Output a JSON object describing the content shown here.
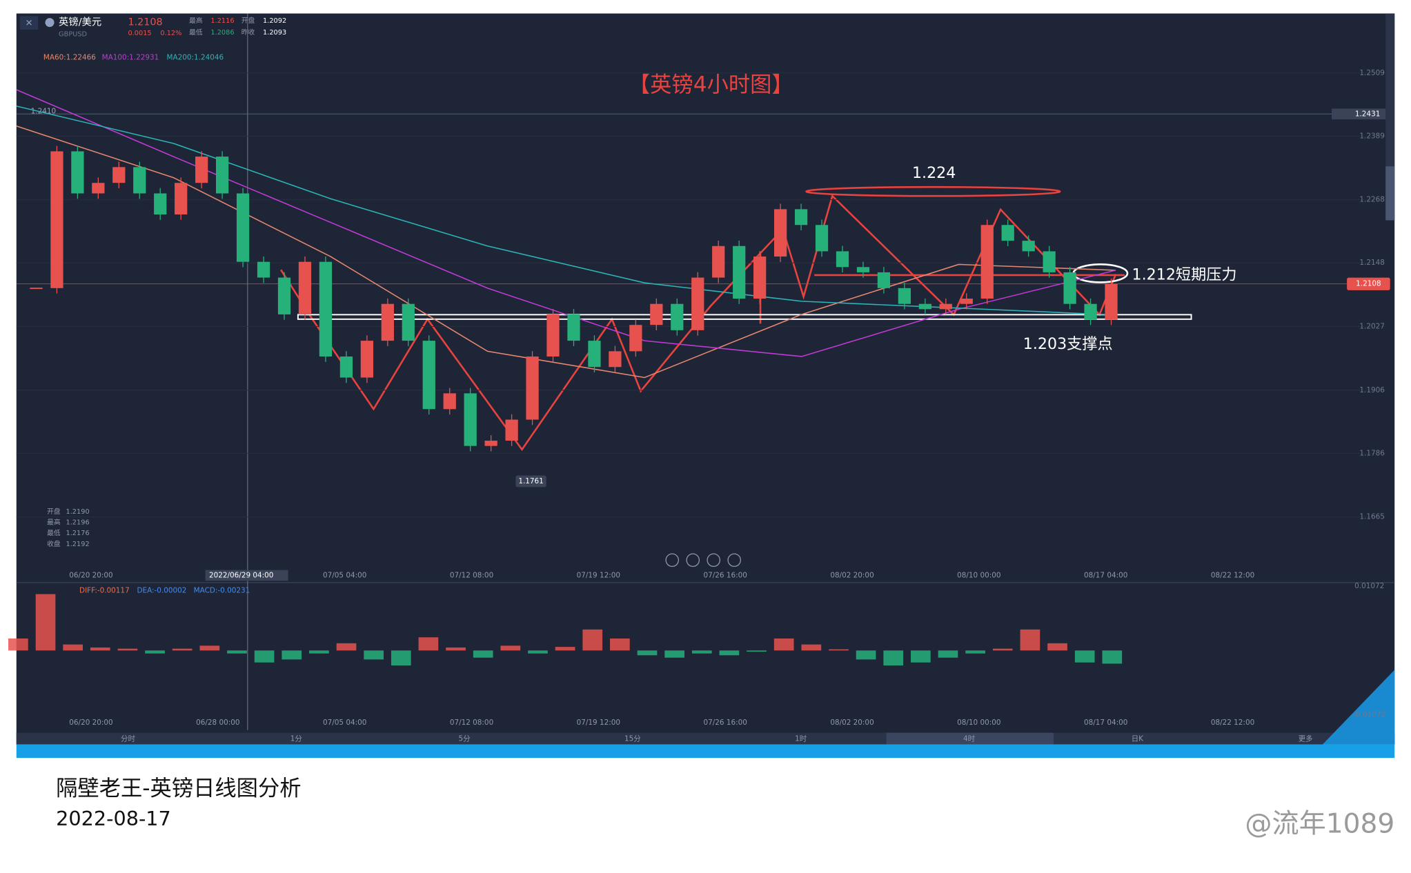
{
  "header": {
    "pair": "英镑/美元",
    "code": "GBPUSD",
    "price": "1.2108",
    "change": "0.0015",
    "change_pct": "0.12%",
    "stats": [
      {
        "label": "最高",
        "value": "1.2116"
      },
      {
        "label": "开盘",
        "value": "1.2092"
      },
      {
        "label": "最低",
        "value": "1.2086"
      },
      {
        "label": "昨收",
        "value": "1.2093"
      }
    ]
  },
  "chart_data": {
    "type": "candlestick",
    "title": "【英镑4小时图】",
    "values": [
      1.21,
      1.236,
      1.228,
      1.23,
      1.233,
      1.228,
      1.224,
      1.23,
      1.235,
      1.228,
      1.215,
      1.212,
      1.205,
      1.215,
      1.197,
      1.193,
      1.2,
      1.207,
      1.2,
      1.187,
      1.19,
      1.18,
      1.181,
      1.185,
      1.197,
      1.205,
      1.2,
      1.195,
      1.198,
      1.203,
      1.207,
      1.202,
      1.212,
      1.218,
      1.208,
      1.216,
      1.225,
      1.222,
      1.217,
      1.214,
      1.213,
      1.21,
      1.207,
      1.206,
      1.207,
      1.208,
      1.222,
      1.219,
      1.217,
      1.213,
      1.207,
      1.204,
      1.2108
    ],
    "up_color": "#e8524e",
    "down_color": "#26b07a",
    "ylim": [
      1.1571,
      1.2622
    ],
    "yticks": [
      1.2509,
      1.2389,
      1.2268,
      1.2148,
      1.2027,
      1.1906,
      1.1786,
      1.1665
    ],
    "xticks": [
      "06/20 20:00",
      "07/05 04:00",
      "07/12 08:00",
      "07/19 12:00",
      "07/26 16:00",
      "08/02 20:00",
      "08/10 00:00",
      "08/17 04:00",
      "08/22 12:00"
    ],
    "crosshair_label": "2022/06/29 04:00",
    "moving_averages": [
      {
        "name": "MA60:1.22466",
        "color": "#e8876f",
        "values": [
          1.2408,
          1.231,
          1.216,
          1.198,
          1.193,
          1.205,
          1.2145,
          1.2134
        ]
      },
      {
        "name": "MA100:1.22931",
        "color": "#c23ad6",
        "values": [
          1.2477,
          1.235,
          1.2225,
          1.21,
          1.2,
          1.197,
          1.206,
          1.2134
        ]
      },
      {
        "name": "MA200:1.24046",
        "color": "#2bb5b8",
        "values": [
          1.2446,
          1.2375,
          1.227,
          1.218,
          1.211,
          1.2075,
          1.2062,
          1.2049
        ]
      }
    ],
    "alert_line": {
      "value": 1.2431,
      "label": "1.2431",
      "left_label": "1.2410"
    },
    "last_price": {
      "value": 1.2108,
      "label": "1.2108"
    },
    "low": {
      "value": 1.1761,
      "label": "1.1761"
    },
    "annotations": [
      "1.224",
      "1.212短期压力",
      "1.203支撑点"
    ],
    "ohlc": [
      {
        "label": "开盘",
        "value": "1.2190"
      },
      {
        "label": "最高",
        "value": "1.2196"
      },
      {
        "label": "最低",
        "value": "1.2176"
      },
      {
        "label": "收盘",
        "value": "1.2192"
      }
    ]
  },
  "macd": {
    "diff": "DIFF:-0.00117",
    "dea": "DEA:-0.00002",
    "macd": "MACD:-0.00231",
    "ylim": [
      -0.01072,
      0.01072
    ],
    "yticks": [
      0.01072,
      -0.01072
    ],
    "values": [
      0.002,
      0.0094,
      0.001,
      0.0005,
      0.0003,
      -0.0005,
      0.0003,
      0.0008,
      -0.0005,
      -0.002,
      -0.0015,
      -0.0005,
      0.0012,
      -0.0015,
      -0.0025,
      0.0022,
      0.0005,
      -0.0012,
      0.0008,
      -0.0005,
      0.0006,
      0.0035,
      0.002,
      -0.0008,
      -0.0012,
      -0.0005,
      -0.0008,
      -0.0002,
      0.002,
      0.001,
      0.0002,
      -0.0015,
      -0.0025,
      -0.002,
      -0.0012,
      -0.0005,
      0.0003,
      0.0035,
      0.0012,
      -0.002,
      -0.0022
    ],
    "xticks": [
      "06/20 20:00",
      "06/28 00:00",
      "07/05 04:00",
      "07/12 08:00",
      "07/19 12:00",
      "07/26 16:00",
      "08/02 20:00",
      "08/10 00:00",
      "08/17 04:00",
      "08/22 12:00"
    ]
  },
  "tabs": [
    "分时",
    "1分",
    "5分",
    "15分",
    "1时",
    "4时",
    "日K",
    "更多"
  ],
  "caption": {
    "title": "隔壁老王-英镑日线图分析",
    "date": "2022-08-17"
  },
  "watermark": "@流年1089"
}
